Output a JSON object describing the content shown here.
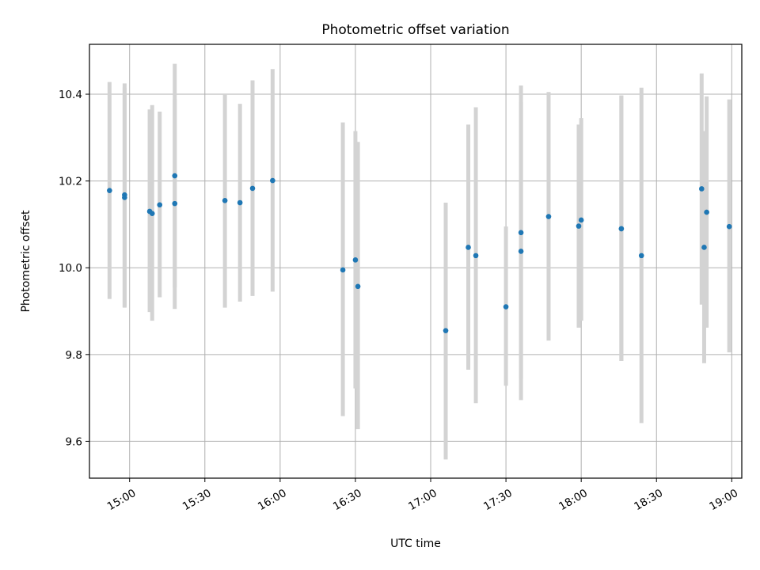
{
  "chart_data": {
    "type": "scatter",
    "title": "Photometric offset variation",
    "xlabel": "UTC time",
    "ylabel": "Photometric offset",
    "grid": true,
    "xlim": [
      "14:44",
      "19:04"
    ],
    "ylim": [
      9.515,
      10.515
    ],
    "x_ticks": [
      "15:00",
      "15:30",
      "16:00",
      "16:30",
      "17:00",
      "17:30",
      "18:00",
      "18:30",
      "19:00"
    ],
    "y_ticks": [
      9.6,
      9.8,
      10.0,
      10.2,
      10.4
    ],
    "y_tick_labels": [
      "9.6",
      "9.8",
      "10.0",
      "10.2",
      "10.4"
    ],
    "colors": {
      "points": "#1f77b4",
      "error_bars": "#d3d3d3",
      "grid": "#b0b0b0"
    },
    "series": [
      {
        "points": [
          {
            "x": "14:52",
            "y": 10.178,
            "err_low": 9.928,
            "err_high": 10.428
          },
          {
            "x": "14:58",
            "y": 10.168,
            "err_low": 9.91,
            "err_high": 10.425
          },
          {
            "x": "14:58",
            "y": 10.162,
            "err_low": 9.908,
            "err_high": 10.415
          },
          {
            "x": "15:08",
            "y": 10.13,
            "err_low": 9.898,
            "err_high": 10.365
          },
          {
            "x": "15:09",
            "y": 10.125,
            "err_low": 9.878,
            "err_high": 10.375
          },
          {
            "x": "15:12",
            "y": 10.145,
            "err_low": 9.932,
            "err_high": 10.36
          },
          {
            "x": "15:18",
            "y": 10.212,
            "err_low": 9.955,
            "err_high": 10.47
          },
          {
            "x": "15:18",
            "y": 10.148,
            "err_low": 9.905,
            "err_high": 10.388
          },
          {
            "x": "15:38",
            "y": 10.155,
            "err_low": 9.908,
            "err_high": 10.4
          },
          {
            "x": "15:44",
            "y": 10.15,
            "err_low": 9.922,
            "err_high": 10.378
          },
          {
            "x": "15:49",
            "y": 10.183,
            "err_low": 9.935,
            "err_high": 10.432
          },
          {
            "x": "15:57",
            "y": 10.201,
            "err_low": 9.945,
            "err_high": 10.458
          },
          {
            "x": "16:25",
            "y": 9.995,
            "err_low": 9.658,
            "err_high": 10.335
          },
          {
            "x": "16:30",
            "y": 10.018,
            "err_low": 9.722,
            "err_high": 10.315
          },
          {
            "x": "16:31",
            "y": 9.957,
            "err_low": 9.628,
            "err_high": 10.29
          },
          {
            "x": "17:06",
            "y": 9.855,
            "err_low": 9.558,
            "err_high": 10.15
          },
          {
            "x": "17:15",
            "y": 10.047,
            "err_low": 9.765,
            "err_high": 10.33
          },
          {
            "x": "17:18",
            "y": 10.028,
            "err_low": 9.688,
            "err_high": 10.37
          },
          {
            "x": "17:30",
            "y": 9.91,
            "err_low": 9.728,
            "err_high": 10.095
          },
          {
            "x": "17:36",
            "y": 10.081,
            "err_low": 9.745,
            "err_high": 10.42
          },
          {
            "x": "17:36",
            "y": 10.038,
            "err_low": 9.695,
            "err_high": 10.382
          },
          {
            "x": "17:47",
            "y": 10.118,
            "err_low": 9.832,
            "err_high": 10.405
          },
          {
            "x": "17:59",
            "y": 10.096,
            "err_low": 9.862,
            "err_high": 10.33
          },
          {
            "x": "18:00",
            "y": 10.11,
            "err_low": 9.878,
            "err_high": 10.345
          },
          {
            "x": "18:16",
            "y": 10.09,
            "err_low": 9.785,
            "err_high": 10.397
          },
          {
            "x": "18:16",
            "y": 10.09,
            "err_low": 9.785,
            "err_high": 10.397
          },
          {
            "x": "18:24",
            "y": 10.028,
            "err_low": 9.642,
            "err_high": 10.415
          },
          {
            "x": "18:48",
            "y": 10.182,
            "err_low": 9.915,
            "err_high": 10.448
          },
          {
            "x": "18:49",
            "y": 10.047,
            "err_low": 9.78,
            "err_high": 10.315
          },
          {
            "x": "18:50",
            "y": 10.128,
            "err_low": 9.862,
            "err_high": 10.395
          },
          {
            "x": "18:59",
            "y": 10.095,
            "err_low": 9.805,
            "err_high": 10.388
          }
        ]
      }
    ]
  }
}
